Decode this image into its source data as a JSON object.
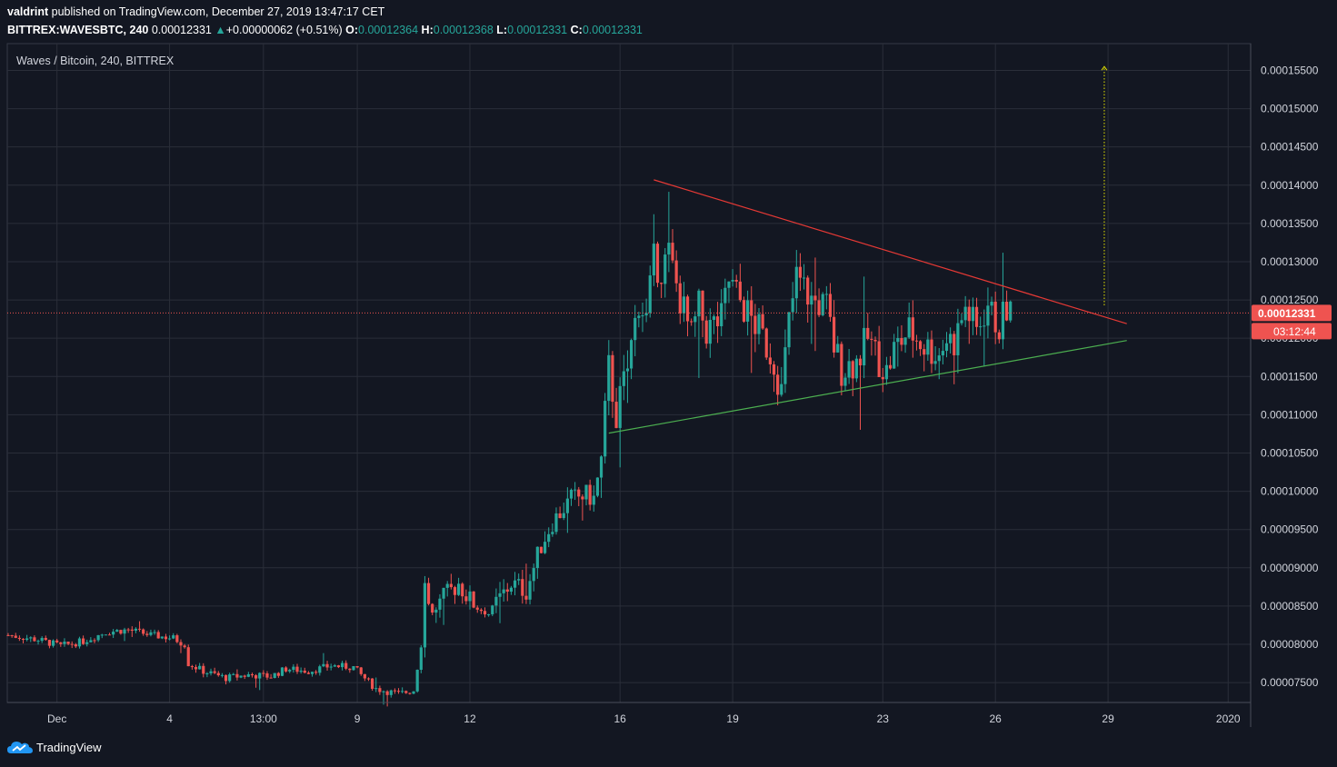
{
  "publisher": {
    "user": "valdrint",
    "text": "published on TradingView.com, December 27, 2019 13:47:17 CET"
  },
  "ticker": {
    "symbol": "BITTREX:WAVESBTC, 240",
    "last": "0.00012331",
    "change": "+0.00000062 (+0.51%)",
    "o_label": "O:",
    "o_value": "0.00012364",
    "h_label": "H:",
    "h_value": "0.00012368",
    "l_label": "L:",
    "l_value": "0.00012331",
    "c_label": "C:",
    "c_value": "0.00012331"
  },
  "footer": {
    "brand": "TradingView"
  },
  "colors": {
    "background": "#131722",
    "grid": "#2a2e39",
    "up": "#26a69a",
    "down": "#ef5350",
    "resistance": "#e53935",
    "support": "#4caf50",
    "target": "#e6e600",
    "price_line": "#ef5350"
  },
  "chart_data": {
    "type": "candlestick",
    "title": "Waves / Bitcoin, 240, BITTREX",
    "y_range": [
      7.24e-05,
      0.0001585
    ],
    "y_ticks": [
      "0.00015500",
      "0.00015000",
      "0.00014500",
      "0.00014000",
      "0.00013500",
      "0.00013000",
      "0.00012500",
      "0.00012000",
      "0.00011500",
      "0.00011000",
      "0.00010500",
      "0.00010000",
      "0.00009500",
      "0.00009000",
      "0.00008500",
      "0.00008000",
      "0.00007500"
    ],
    "x_ticks": [
      "Dec",
      "4",
      "13:00",
      "9",
      "12",
      "16",
      "19",
      "23",
      "26",
      "29",
      "2020"
    ],
    "current_price_label": "0.00012331",
    "countdown_label": "03:12:44",
    "close_path": [
      [
        0,
        8.12e-05
      ],
      [
        8,
        8.06e-05
      ],
      [
        14,
        7.98e-05
      ],
      [
        20,
        8.04e-05
      ],
      [
        26,
        8.16e-05
      ],
      [
        32,
        8.19e-05
      ],
      [
        38,
        8.12e-05
      ],
      [
        44,
        8.08e-05
      ],
      [
        47,
        8e-05
      ],
      [
        48,
        7.75e-05
      ],
      [
        52,
        7.65e-05
      ],
      [
        58,
        7.56e-05
      ],
      [
        64,
        7.6e-05
      ],
      [
        70,
        7.58e-05
      ],
      [
        74,
        7.68e-05
      ],
      [
        80,
        7.65e-05
      ],
      [
        86,
        7.72e-05
      ],
      [
        92,
        7.7e-05
      ],
      [
        94,
        7.6e-05
      ],
      [
        98,
        7.42e-05
      ],
      [
        104,
        7.35e-05
      ],
      [
        108,
        7.4e-05
      ],
      [
        110,
        8e-05
      ],
      [
        111,
        8.8e-05
      ],
      [
        113,
        8.4e-05
      ],
      [
        116,
        8.6e-05
      ],
      [
        120,
        8.8e-05
      ],
      [
        124,
        8.5e-05
      ],
      [
        128,
        8.4e-05
      ],
      [
        134,
        8.8e-05
      ],
      [
        138,
        8.7e-05
      ],
      [
        142,
        9.3e-05
      ],
      [
        145,
        9.6e-05
      ],
      [
        150,
        9.9e-05
      ],
      [
        154,
        9.95e-05
      ],
      [
        156,
        9.9e-05
      ],
      [
        158,
        0.000104
      ],
      [
        160,
        0.000116
      ],
      [
        162,
        0.00011
      ],
      [
        165,
        0.000116
      ],
      [
        168,
        0.000125
      ],
      [
        170,
        0.0001225
      ],
      [
        172,
        0.00013
      ],
      [
        174,
        0.000129
      ],
      [
        176,
        0.000131
      ],
      [
        178,
        0.000127
      ],
      [
        182,
        0.00012
      ],
      [
        184,
        0.000124
      ],
      [
        186,
        0.000121
      ],
      [
        190,
        0.0001225
      ],
      [
        192,
        0.0001275
      ],
      [
        196,
        0.000124
      ],
      [
        200,
        0.000121
      ],
      [
        204,
        0.000117
      ],
      [
        206,
        0.000113
      ],
      [
        208,
        0.000122
      ],
      [
        210,
        0.000128
      ],
      [
        214,
        0.000125
      ],
      [
        218,
        0.000124
      ],
      [
        220,
        0.000119
      ],
      [
        222,
        0.000116
      ],
      [
        226,
        0.000117
      ],
      [
        229,
        0.00012
      ],
      [
        231,
        0.000118
      ],
      [
        234,
        0.0001155
      ],
      [
        236,
        0.0001185
      ],
      [
        240,
        0.000121
      ],
      [
        244,
        0.000119
      ],
      [
        248,
        0.000118
      ],
      [
        250,
        0.00012
      ],
      [
        252,
        0.0001195
      ],
      [
        255,
        0.000124
      ],
      [
        258,
        0.000121
      ],
      [
        261,
        0.0001245
      ],
      [
        262,
        0.000123
      ],
      [
        264,
        0.0001215
      ],
      [
        266,
        0.000124
      ],
      [
        267,
        0.0001233
      ]
    ],
    "trendlines": [
      {
        "name": "resistance",
        "from": [
          172,
          0.0001407
        ],
        "to": [
          298,
          0.0001219
        ]
      },
      {
        "name": "support",
        "from": [
          160,
          0.0001076
        ],
        "to": [
          298,
          0.0001197
        ]
      }
    ],
    "target_arrow": {
      "x": 292,
      "from": 0.0001243,
      "to": 0.0001555
    }
  }
}
